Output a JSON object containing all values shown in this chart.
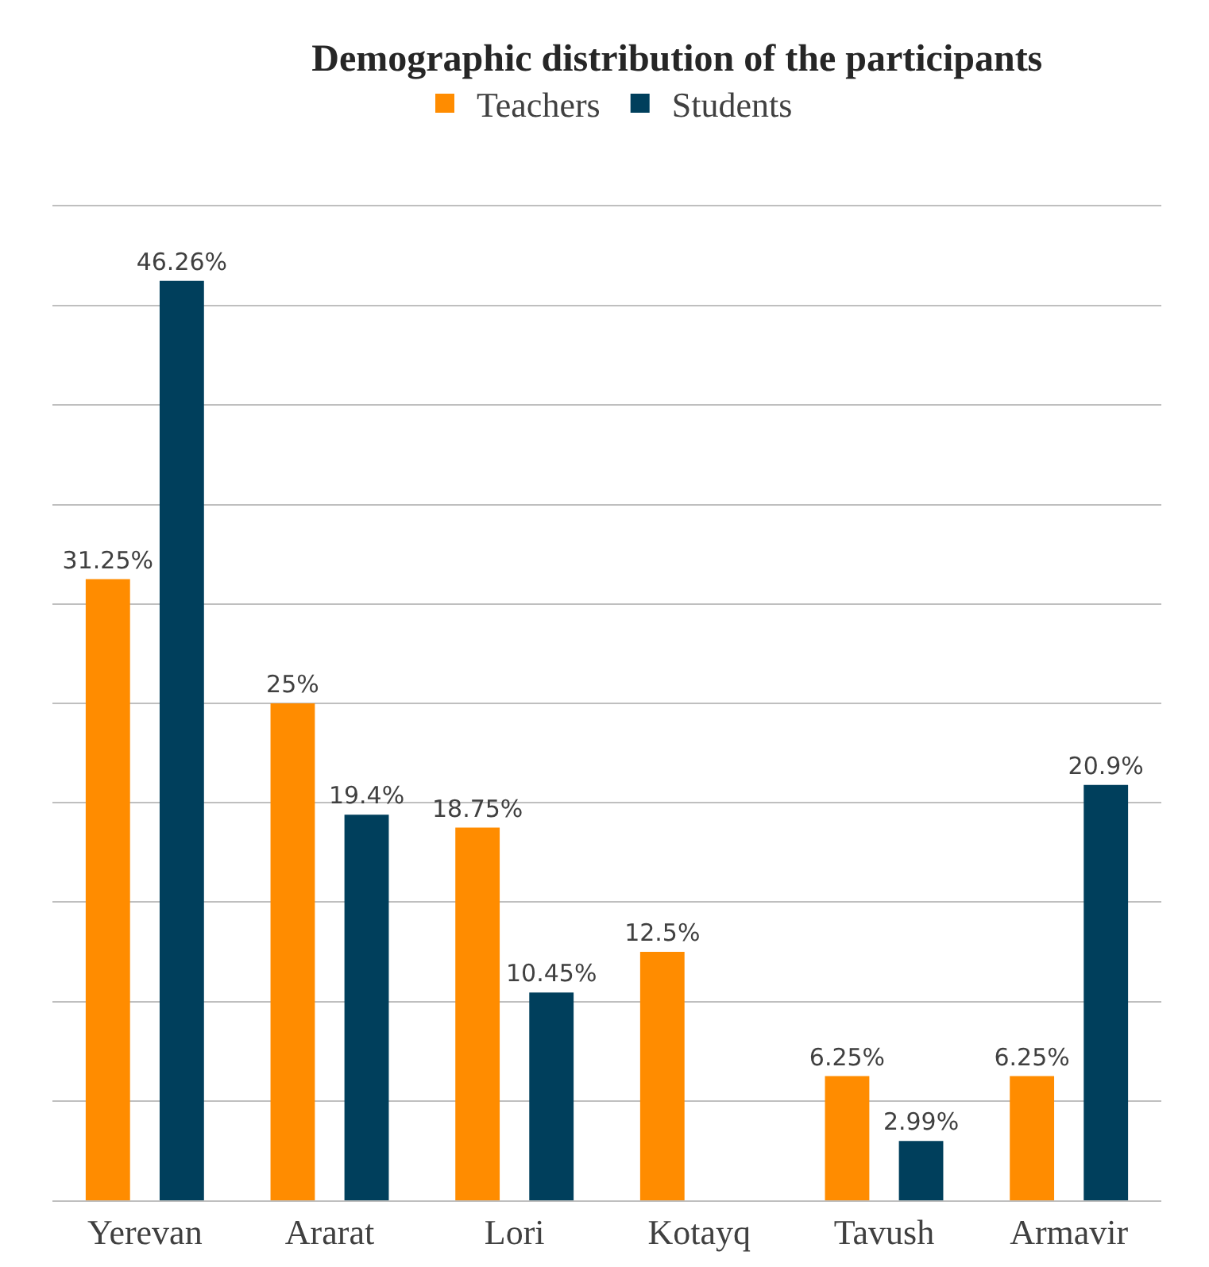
{
  "chart_data": {
    "type": "bar",
    "title": "Demographic distribution of the participants",
    "categories": [
      "Yerevan",
      "Ararat",
      "Lori",
      "Kotayq",
      "Tavush",
      "Armavir"
    ],
    "series": [
      {
        "name": "Teachers",
        "color": "#ff8c00",
        "values": [
          31.25,
          25,
          18.75,
          12.5,
          6.25,
          6.25
        ],
        "value_labels": [
          "31.25%",
          "25%",
          "18.75%",
          "12.5%",
          "6.25%",
          "6.25%"
        ]
      },
      {
        "name": "Students",
        "color": "#003f5c",
        "values": [
          46.26,
          19.4,
          10.45,
          null,
          2.99,
          20.9
        ],
        "value_labels": [
          "46.26%",
          "19.4%",
          "10.45%",
          null,
          "2.99%",
          "20.9%"
        ]
      }
    ],
    "ylim": [
      0,
      50
    ],
    "yticks": [
      {
        "value": 0,
        "label": null
      },
      {
        "value": 5,
        "label": null
      },
      {
        "value": 10,
        "label": null
      },
      {
        "value": 15,
        "label": null
      },
      {
        "value": 20,
        "label": null
      },
      {
        "value": 25,
        "label": null
      },
      {
        "value": 30,
        "label": null
      },
      {
        "value": 35,
        "label": null
      },
      {
        "value": 40,
        "label": null
      },
      {
        "value": 45,
        "label": null
      },
      {
        "value": 50,
        "label": null
      }
    ],
    "tick_labels": "x",
    "grid": "y",
    "legend": "top"
  }
}
